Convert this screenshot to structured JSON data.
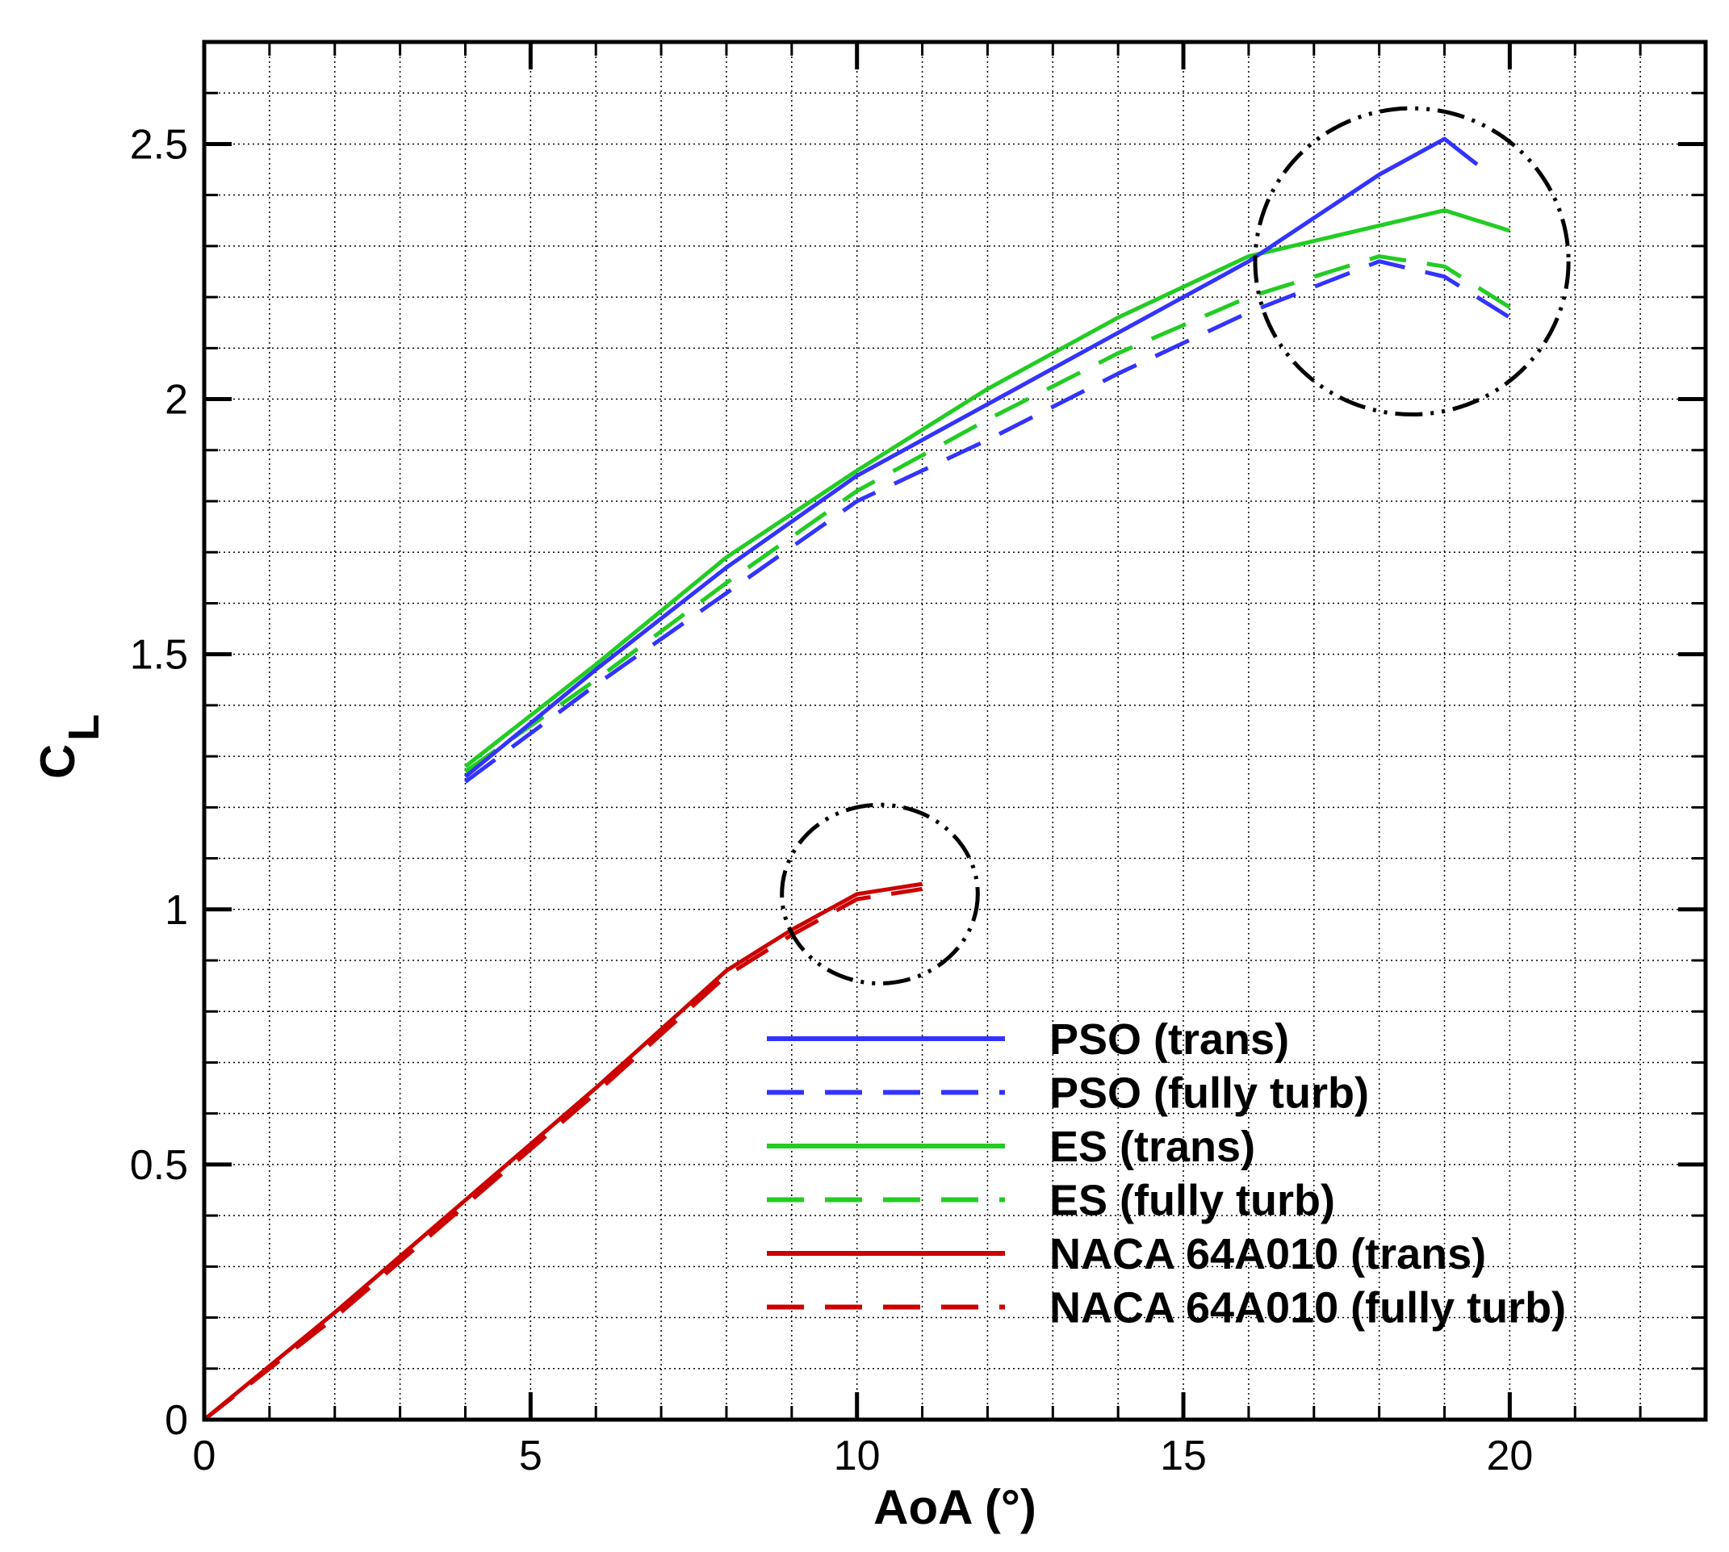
{
  "chart_data": {
    "type": "line",
    "title": "",
    "xlabel": "AoA (°)",
    "ylabel_main": "C",
    "ylabel_sub": "L",
    "xlim": [
      0,
      23
    ],
    "ylim": [
      0,
      2.7
    ],
    "grid": true,
    "x_ticks": [
      0,
      5,
      10,
      15,
      20
    ],
    "x_tick_labels": [
      "0",
      "5",
      "10",
      "15",
      "20"
    ],
    "y_ticks": [
      0,
      0.5,
      1,
      1.5,
      2,
      2.5
    ],
    "y_tick_labels": [
      "0",
      "0.5",
      "1",
      "1.5",
      "2",
      "2.5"
    ],
    "x_grid_step": 1,
    "y_grid_step": 0.1,
    "legend_position": "lower-right",
    "colors": {
      "blue": "#3333ff",
      "green": "#22cc22",
      "red": "#cc0000",
      "black": "#000000"
    },
    "series": [
      {
        "name": "PSO (trans)",
        "color": "#3333ff",
        "dashed": false,
        "x": [
          4,
          6,
          8,
          10,
          12,
          14,
          16,
          18,
          19,
          19.5
        ],
        "y": [
          1.26,
          1.47,
          1.67,
          1.85,
          1.99,
          2.13,
          2.27,
          2.44,
          2.51,
          2.46
        ]
      },
      {
        "name": "PSO (fully turb)",
        "color": "#3333ff",
        "dashed": true,
        "x": [
          4,
          6,
          8,
          10,
          12,
          14,
          16,
          18,
          19,
          20
        ],
        "y": [
          1.25,
          1.44,
          1.62,
          1.8,
          1.92,
          2.05,
          2.17,
          2.27,
          2.24,
          2.16
        ]
      },
      {
        "name": "ES (trans)",
        "color": "#22cc22",
        "dashed": false,
        "x": [
          4,
          6,
          8,
          10,
          12,
          14,
          16,
          17,
          18,
          19,
          20
        ],
        "y": [
          1.28,
          1.48,
          1.69,
          1.86,
          2.02,
          2.16,
          2.28,
          2.31,
          2.34,
          2.37,
          2.33
        ]
      },
      {
        "name": "ES (fully turb)",
        "color": "#22cc22",
        "dashed": true,
        "x": [
          4,
          6,
          8,
          10,
          12,
          14,
          16,
          18,
          19,
          20
        ],
        "y": [
          1.27,
          1.45,
          1.64,
          1.82,
          1.96,
          2.09,
          2.2,
          2.28,
          2.26,
          2.18
        ]
      },
      {
        "name": "NACA 64A010 (trans)",
        "color": "#cc0000",
        "dashed": false,
        "x": [
          0,
          2,
          4,
          6,
          8,
          9,
          10,
          11
        ],
        "y": [
          0,
          0.21,
          0.43,
          0.65,
          0.88,
          0.96,
          1.03,
          1.05
        ]
      },
      {
        "name": "NACA 64A010 (fully turb)",
        "color": "#cc0000",
        "dashed": true,
        "x": [
          0,
          2,
          4,
          6,
          8,
          9,
          10,
          11
        ],
        "y": [
          0,
          0.2,
          0.42,
          0.64,
          0.87,
          0.95,
          1.02,
          1.04
        ]
      }
    ],
    "annotations": [
      {
        "type": "dash-dot-circle",
        "cx": 18.5,
        "cy": 2.27,
        "rx": 2.4,
        "ry": 0.3
      },
      {
        "type": "dash-dot-circle",
        "cx": 10.35,
        "cy": 1.03,
        "rx": 1.5,
        "ry": 0.175
      }
    ]
  }
}
